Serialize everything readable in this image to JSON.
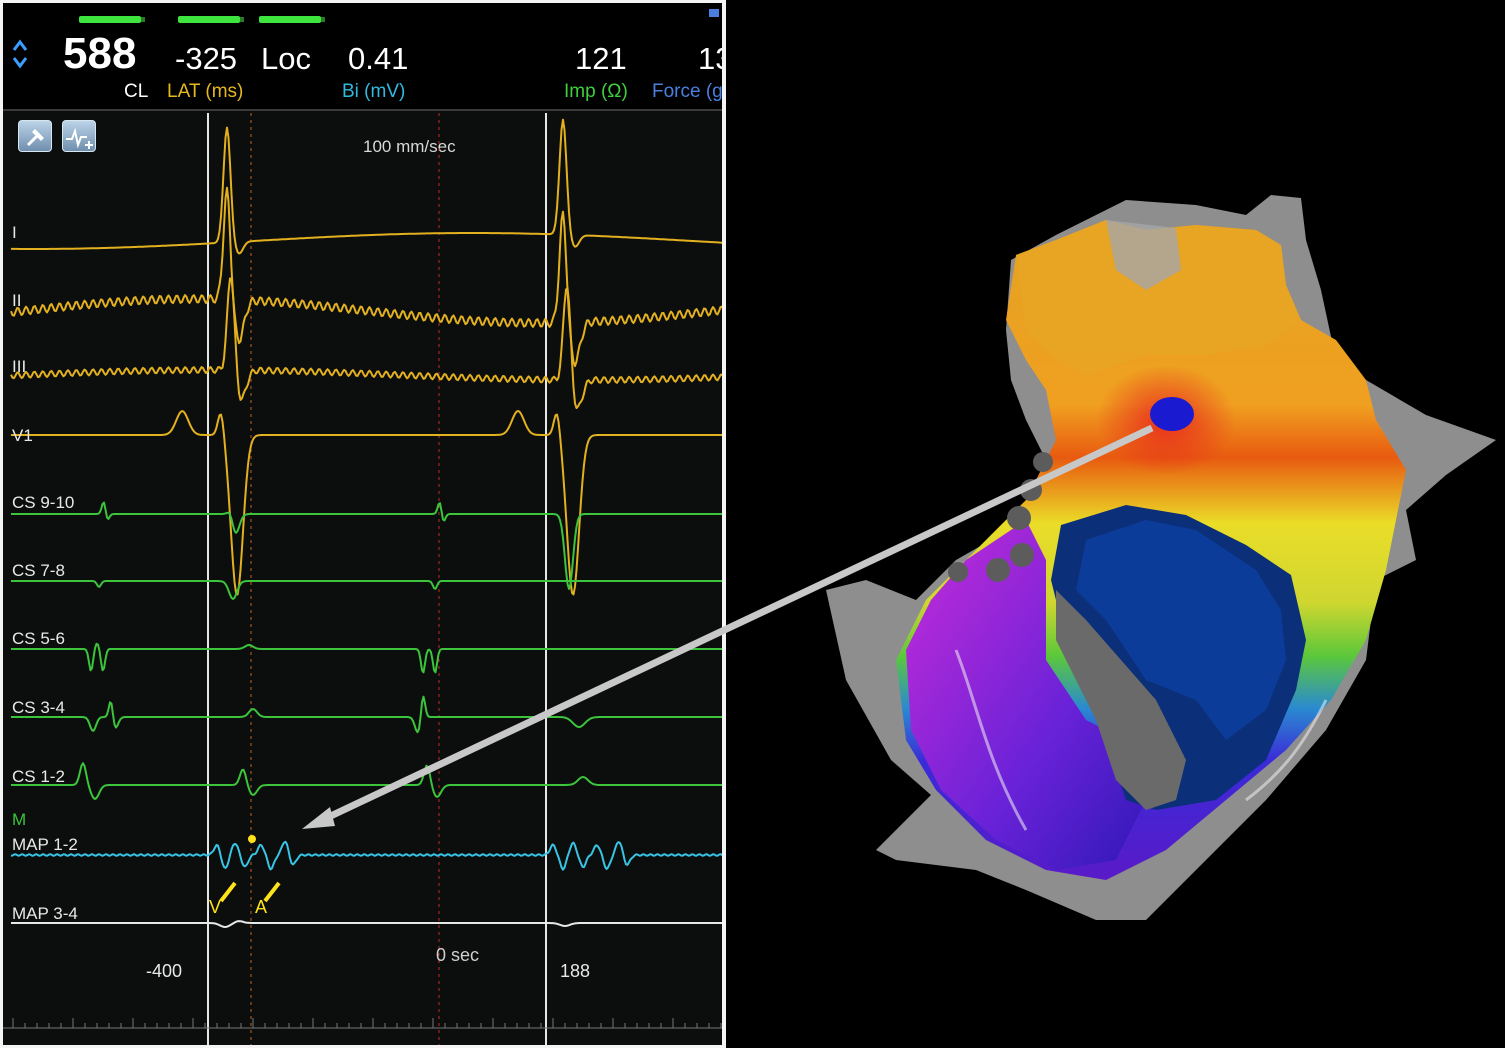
{
  "header": {
    "cl_value": "588",
    "cl_label": "CL",
    "lat_value": "-325",
    "lat_label": "LAT (ms)",
    "loc_label": "Loc",
    "bi_value": "0.41",
    "bi_label": "Bi (mV)",
    "imp_value": "121",
    "imp_label": "Imp (Ω)",
    "force_value": "13",
    "force_label": "Force (g"
  },
  "toolbar": {
    "tool1_icon": "hammer-icon",
    "tool2_icon": "add-signal-icon"
  },
  "traces": {
    "sweep_speed": "100 mm/sec",
    "channels": [
      {
        "label": "I"
      },
      {
        "label": "II"
      },
      {
        "label": "III"
      },
      {
        "label": "V1"
      },
      {
        "label": "CS 9-10"
      },
      {
        "label": "CS 7-8"
      },
      {
        "label": "CS 5-6"
      },
      {
        "label": "CS 3-4"
      },
      {
        "label": "CS 1-2"
      },
      {
        "label": "M"
      },
      {
        "label": "MAP 1-2"
      },
      {
        "label": "MAP 3-4"
      }
    ],
    "marker_v": "V",
    "marker_a": "A",
    "time_left": "-400",
    "time_zero": "0 sec",
    "time_right": "188"
  },
  "colors": {
    "surface_leads": "#e3b020",
    "cs_leads": "#3cc43c",
    "map_lead": "#39c4e6",
    "header_lat": "#e6b81e",
    "header_bi": "#33b8e0",
    "header_imp": "#3ecf3e",
    "header_force": "#4a7fe0",
    "ablation_point": "#1a1ad0"
  }
}
